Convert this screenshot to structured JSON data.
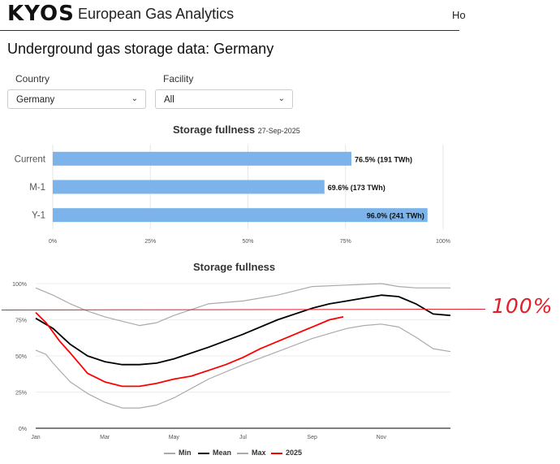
{
  "header": {
    "logo_text": "KYOS",
    "app_title": "European Gas Analytics",
    "nav_home": "Ho"
  },
  "page": {
    "title": "Underground gas storage data: Germany"
  },
  "filters": {
    "country": {
      "label": "Country",
      "value": "Germany"
    },
    "facility": {
      "label": "Facility",
      "value": "All"
    }
  },
  "colors": {
    "bar": "#7bb3ea",
    "mean": "#000000",
    "range": "#aaaaaa",
    "current_year": "#ff0000",
    "annotation": "#e0202a"
  },
  "annotation": {
    "text": "100%"
  },
  "chart_data": [
    {
      "type": "bar",
      "title": "Storage fullness",
      "date": "27-Sep-2025",
      "orientation": "horizontal",
      "categories": [
        "Current",
        "M-1",
        "Y-1"
      ],
      "values": [
        76.5,
        69.6,
        96.0
      ],
      "labels": [
        "76.5% (191 TWh)",
        "69.6% (173 TWh)",
        "96.0% (241 TWh)"
      ],
      "xlim": [
        0,
        100
      ],
      "xticks": [
        "0%",
        "25%",
        "50%",
        "75%",
        "100%"
      ],
      "grid": true
    },
    {
      "type": "line",
      "title": "Storage fullness",
      "xticks": [
        "Jan",
        "Mar",
        "May",
        "Jul",
        "Sep",
        "Nov"
      ],
      "yticks": [
        "0%",
        "25%",
        "50%",
        "75%",
        "100%"
      ],
      "ylim": [
        0,
        100
      ],
      "x_unit": "month",
      "legend_position": "bottom",
      "series": [
        {
          "name": "Min",
          "x": [
            0,
            0.3,
            0.5,
            1,
            1.5,
            2,
            2.5,
            3,
            3.5,
            4,
            5,
            6,
            7,
            8,
            9,
            9.5,
            10,
            10.5,
            11,
            11.5,
            12
          ],
          "y": [
            54,
            51,
            45,
            32,
            24,
            18,
            14,
            14,
            16,
            21,
            34,
            44,
            53,
            62,
            69,
            71,
            72,
            70,
            63,
            55,
            53
          ]
        },
        {
          "name": "Mean",
          "x": [
            0,
            0.5,
            1,
            1.5,
            2,
            2.5,
            3,
            3.5,
            4,
            5,
            6,
            7,
            8,
            8.5,
            9,
            9.5,
            10,
            10.5,
            11,
            11.5,
            12
          ],
          "y": [
            76,
            69,
            58,
            50,
            46,
            44,
            44,
            45,
            48,
            56,
            65,
            75,
            83,
            86,
            88,
            90,
            92,
            91,
            86,
            79,
            78
          ]
        },
        {
          "name": "Max",
          "x": [
            0,
            0.5,
            1,
            1.5,
            2,
            2.5,
            3,
            3.5,
            4,
            5,
            6,
            7,
            8,
            9,
            10,
            10.5,
            11,
            11.5,
            12
          ],
          "y": [
            97,
            92,
            86,
            81,
            77,
            74,
            71,
            73,
            78,
            86,
            88,
            92,
            98,
            99,
            100,
            98,
            97,
            97,
            97
          ]
        },
        {
          "name": "2025",
          "x": [
            0,
            0.3,
            0.7,
            1,
            1.5,
            2,
            2.5,
            3,
            3.5,
            4,
            4.5,
            5,
            5.5,
            6,
            6.5,
            7,
            7.5,
            8,
            8.5,
            8.9
          ],
          "y": [
            80,
            73,
            60,
            52,
            38,
            32,
            29,
            29,
            31,
            34,
            36,
            40,
            44,
            49,
            55,
            60,
            65,
            70,
            75,
            77
          ]
        }
      ]
    }
  ]
}
